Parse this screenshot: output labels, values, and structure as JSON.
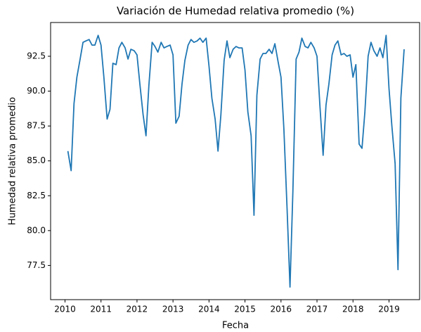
{
  "chart_data": {
    "type": "line",
    "title": "Variación de Humedad relativa promedio (%)",
    "x_label": "Fecha",
    "y_label": "Humedad relativa promedio",
    "x": [
      2010.08,
      2010.17,
      2010.25,
      2010.33,
      2010.42,
      2010.5,
      2010.58,
      2010.67,
      2010.75,
      2010.83,
      2010.92,
      2011.0,
      2011.08,
      2011.17,
      2011.25,
      2011.33,
      2011.42,
      2011.5,
      2011.58,
      2011.67,
      2011.75,
      2011.83,
      2011.92,
      2012.0,
      2012.08,
      2012.17,
      2012.25,
      2012.33,
      2012.42,
      2012.5,
      2012.58,
      2012.67,
      2012.75,
      2012.83,
      2012.92,
      2013.0,
      2013.08,
      2013.17,
      2013.25,
      2013.33,
      2013.42,
      2013.5,
      2013.58,
      2013.67,
      2013.75,
      2013.83,
      2013.92,
      2014.0,
      2014.08,
      2014.17,
      2014.25,
      2014.33,
      2014.42,
      2014.5,
      2014.58,
      2014.67,
      2014.75,
      2014.83,
      2014.92,
      2015.0,
      2015.08,
      2015.17,
      2015.25,
      2015.33,
      2015.42,
      2015.5,
      2015.58,
      2015.67,
      2015.75,
      2015.83,
      2015.92,
      2016.0,
      2016.08,
      2016.17,
      2016.25,
      2016.33,
      2016.42,
      2016.5,
      2016.58,
      2016.67,
      2016.75,
      2016.83,
      2016.92,
      2017.0,
      2017.08,
      2017.17,
      2017.25,
      2017.33,
      2017.42,
      2017.5,
      2017.58,
      2017.67,
      2017.75,
      2017.83,
      2017.92,
      2018.0,
      2018.08,
      2018.17,
      2018.25,
      2018.33,
      2018.42,
      2018.5,
      2018.58,
      2018.67,
      2018.75,
      2018.83,
      2018.92,
      2019.0,
      2019.08,
      2019.17,
      2019.25,
      2019.33,
      2019.42
    ],
    "series": [
      {
        "color": "#1f77b4",
        "values": [
          85.7,
          84.3,
          89.1,
          91.0,
          92.3,
          93.5,
          93.6,
          93.7,
          93.3,
          93.3,
          94.0,
          93.3,
          91.0,
          88.0,
          88.7,
          92.0,
          91.9,
          93.1,
          93.5,
          93.1,
          92.3,
          93.0,
          92.9,
          92.6,
          90.5,
          88.3,
          86.8,
          90.4,
          93.5,
          93.2,
          92.8,
          93.5,
          93.1,
          93.2,
          93.3,
          92.6,
          87.7,
          88.2,
          90.5,
          92.2,
          93.3,
          93.7,
          93.5,
          93.6,
          93.8,
          93.5,
          93.8,
          91.8,
          89.5,
          88.0,
          85.7,
          88.3,
          92.2,
          93.6,
          92.4,
          93.0,
          93.2,
          93.1,
          93.1,
          91.5,
          88.5,
          86.8,
          81.1,
          89.7,
          92.3,
          92.7,
          92.7,
          93.0,
          92.7,
          93.4,
          92.1,
          91.0,
          87.3,
          81.5,
          75.95,
          82.8,
          92.3,
          92.8,
          93.8,
          93.2,
          93.1,
          93.5,
          93.1,
          92.5,
          89.0,
          85.4,
          89.0,
          90.5,
          92.6,
          93.3,
          93.6,
          92.6,
          92.7,
          92.5,
          92.6,
          91.0,
          91.9,
          86.2,
          85.9,
          88.5,
          92.5,
          93.5,
          92.9,
          92.5,
          93.1,
          92.4,
          94.0,
          90.2,
          87.5,
          84.8,
          77.2,
          89.5,
          93.0
        ]
      }
    ],
    "xlim": [
      2009.6,
      2019.85
    ],
    "xticks": [
      2010,
      2011,
      2012,
      2013,
      2014,
      2015,
      2016,
      2017,
      2018,
      2019
    ],
    "ylim": [
      75.05,
      94.92
    ],
    "yticks": [
      77.5,
      {
        "value": 80,
        "label": "80.0"
      },
      82.5,
      {
        "value": 85,
        "label": "85.0"
      },
      87.5,
      {
        "value": 90,
        "label": "90.0"
      },
      92.5
    ]
  }
}
